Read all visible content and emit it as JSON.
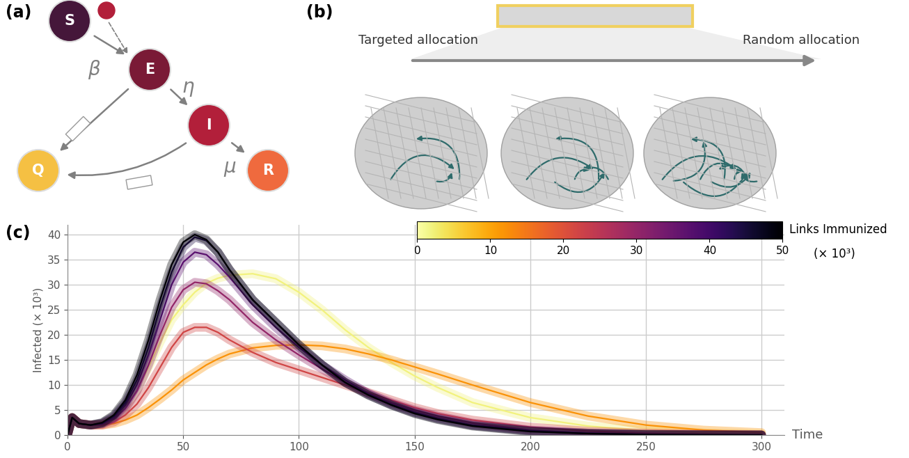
{
  "panel_labels": [
    "(a)",
    "(b)",
    "(c)"
  ],
  "diagram": {
    "nodes": [
      "S",
      "E",
      "I",
      "Q",
      "R"
    ],
    "rates": [
      "β",
      "η",
      "μ"
    ]
  },
  "allocation": {
    "left": "Targeted allocation",
    "right": "Random allocation"
  },
  "chart_data": {
    "type": "line",
    "x_label": "Time",
    "y_label": "Infected (× 10³)",
    "x": [
      0,
      2,
      5,
      10,
      15,
      20,
      25,
      30,
      35,
      40,
      45,
      50,
      55,
      60,
      65,
      70,
      80,
      90,
      100,
      110,
      120,
      130,
      140,
      150,
      160,
      175,
      200,
      225,
      250,
      275,
      300
    ],
    "series": [
      {
        "links": 2,
        "values": [
          0,
          3.5,
          2.3,
          2.0,
          2.2,
          3.2,
          5.5,
          9,
          13.5,
          18.5,
          23,
          26,
          28.5,
          30.3,
          31.3,
          31.9,
          32.2,
          31.2,
          28.5,
          25,
          21,
          17.5,
          14.5,
          11.8,
          9.5,
          6.5,
          3.5,
          1.8,
          0.9,
          0.45,
          0.2
        ]
      },
      {
        "links": 12,
        "values": [
          0,
          3.5,
          2.3,
          2.0,
          2.0,
          2.3,
          3,
          4,
          5.5,
          7.2,
          9,
          11,
          12.5,
          14,
          15.2,
          16.2,
          17.4,
          17.9,
          18,
          17.8,
          17.2,
          16.2,
          15,
          13.6,
          12.2,
          10,
          6.5,
          3.8,
          2,
          1,
          0.5
        ]
      },
      {
        "links": 22,
        "values": [
          0,
          3.5,
          2.3,
          2.0,
          2.0,
          2.6,
          4,
          6.2,
          9.5,
          13.5,
          17.5,
          20.5,
          21.5,
          21.5,
          20.5,
          19,
          16.5,
          14.5,
          13,
          11.5,
          10,
          8.5,
          7,
          5.5,
          4.3,
          3,
          1.6,
          0.8,
          0.4,
          0.2,
          0.1
        ]
      },
      {
        "links": 30,
        "values": [
          0,
          3.5,
          2.3,
          2.0,
          2.2,
          3.2,
          5.3,
          8.8,
          14,
          20,
          25.5,
          29,
          30.5,
          30.2,
          28.8,
          27,
          22.5,
          19,
          16,
          13.2,
          10.5,
          8.3,
          6.5,
          5,
          3.8,
          2.4,
          1.0,
          0.4,
          0.2,
          0.08,
          0.03
        ]
      },
      {
        "links": 37,
        "values": [
          0,
          3.5,
          2.3,
          2.0,
          2.3,
          3.5,
          6,
          10,
          16,
          23,
          30,
          34.5,
          36.5,
          36,
          34,
          31.5,
          26,
          21.5,
          17.5,
          14,
          11,
          8.3,
          6.2,
          4.6,
          3.4,
          2,
          0.9,
          0.4,
          0.15,
          0.06,
          0.03
        ]
      },
      {
        "links": 44,
        "values": [
          0,
          3.5,
          2.3,
          2.0,
          2.4,
          3.8,
          6.5,
          11,
          17.5,
          25.5,
          32.5,
          37.5,
          39.5,
          38.8,
          36.5,
          33,
          27,
          22.5,
          18,
          14,
          10.5,
          8,
          6,
          4.4,
          3.2,
          1.9,
          0.8,
          0.3,
          0.1,
          0.05,
          0.02
        ]
      },
      {
        "links": 50,
        "values": [
          0,
          3.5,
          2.3,
          2.0,
          2.5,
          4,
          7,
          12,
          19,
          27,
          34,
          38.5,
          40,
          39,
          36.5,
          33,
          27,
          22.5,
          18,
          14,
          10.5,
          8,
          6,
          4.3,
          3.1,
          1.8,
          0.7,
          0.3,
          0.1,
          0.05,
          0.02
        ]
      }
    ],
    "xlim": [
      0,
      310
    ],
    "ylim": [
      0,
      42
    ],
    "xticks": [
      0,
      50,
      100,
      150,
      200,
      250,
      300
    ],
    "yticks": [
      0,
      5,
      10,
      15,
      20,
      25,
      30,
      35,
      40
    ],
    "grid": true,
    "colorbar": {
      "label": "Links Immunized",
      "unit": "(× 10³)",
      "range": [
        0,
        50
      ],
      "ticks": [
        0,
        10,
        20,
        30,
        40,
        50
      ]
    }
  }
}
